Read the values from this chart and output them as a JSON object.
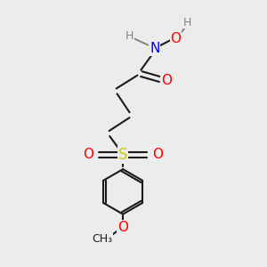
{
  "bg_color": "#ececec",
  "bond_color": "#1a1a1a",
  "bond_width": 1.5,
  "atom_colors": {
    "N": "#0000ff",
    "O": "#ff0000",
    "S": "#cccc00",
    "H": "#808080",
    "C": "#1a1a1a"
  },
  "figsize": [
    3.0,
    3.0
  ],
  "dpi": 100
}
